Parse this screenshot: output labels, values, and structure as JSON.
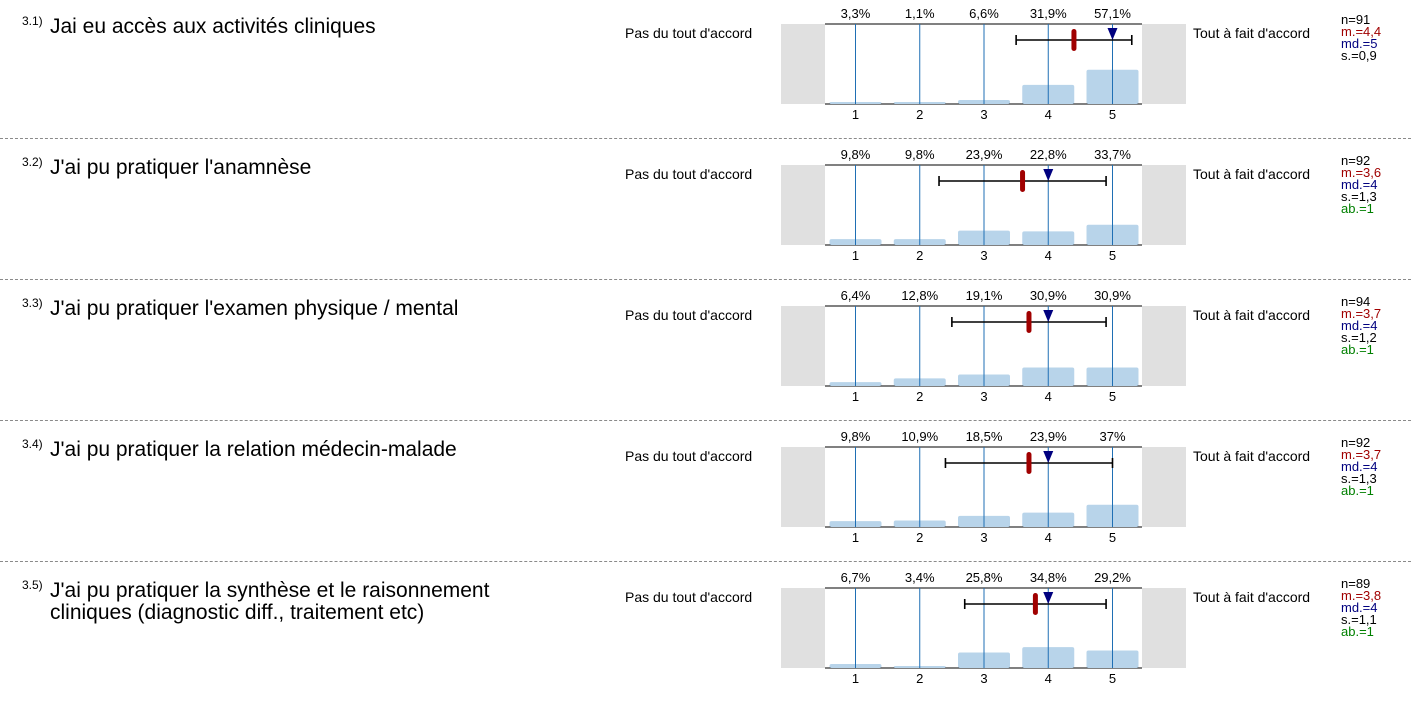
{
  "scale": {
    "min": 1,
    "max": 5,
    "ticks": [
      "1",
      "2",
      "3",
      "4",
      "5"
    ]
  },
  "colors": {
    "bar": "#b8d4ea",
    "gridline": "#1f6fb4",
    "side_panel": "#e0e0e0",
    "mean": "#a00000",
    "median": "#00007f",
    "abs": "#008000"
  },
  "questions": [
    {
      "num": "3.1)",
      "text": "Jai eu accès aux activités cliniques",
      "left_label": "Pas du tout d'accord",
      "right_label": "Tout à fait d'accord",
      "percent_labels": [
        "3,3%",
        "1,1%",
        "6,6%",
        "31,9%",
        "57,1%"
      ],
      "percents": [
        3.3,
        1.1,
        6.6,
        31.9,
        57.1
      ],
      "mean": 4.4,
      "median": 5,
      "sd": 0.9,
      "stats": {
        "n": "n=91",
        "m": "m.=4,4",
        "md": "md.=5",
        "s": "s.=0,9"
      }
    },
    {
      "num": "3.2)",
      "text": "J'ai pu pratiquer l'anamnèse",
      "left_label": "Pas du tout d'accord",
      "right_label": "Tout à fait d'accord",
      "percent_labels": [
        "9,8%",
        "9,8%",
        "23,9%",
        "22,8%",
        "33,7%"
      ],
      "percents": [
        9.8,
        9.8,
        23.9,
        22.8,
        33.7
      ],
      "mean": 3.6,
      "median": 4,
      "sd": 1.3,
      "stats": {
        "n": "n=92",
        "m": "m.=3,6",
        "md": "md.=4",
        "s": "s.=1,3",
        "ab": "ab.=1"
      }
    },
    {
      "num": "3.3)",
      "text": "J'ai pu pratiquer l'examen physique / mental",
      "left_label": "Pas du tout d'accord",
      "right_label": "Tout à fait d'accord",
      "percent_labels": [
        "6,4%",
        "12,8%",
        "19,1%",
        "30,9%",
        "30,9%"
      ],
      "percents": [
        6.4,
        12.8,
        19.1,
        30.9,
        30.9
      ],
      "mean": 3.7,
      "median": 4,
      "sd": 1.2,
      "stats": {
        "n": "n=94",
        "m": "m.=3,7",
        "md": "md.=4",
        "s": "s.=1,2",
        "ab": "ab.=1"
      }
    },
    {
      "num": "3.4)",
      "text": "J'ai pu pratiquer la relation médecin-malade",
      "left_label": "Pas du tout d'accord",
      "right_label": "Tout à fait d'accord",
      "percent_labels": [
        "9,8%",
        "10,9%",
        "18,5%",
        "23,9%",
        "37%"
      ],
      "percents": [
        9.8,
        10.9,
        18.5,
        23.9,
        37
      ],
      "mean": 3.7,
      "median": 4,
      "sd": 1.3,
      "stats": {
        "n": "n=92",
        "m": "m.=3,7",
        "md": "md.=4",
        "s": "s.=1,3",
        "ab": "ab.=1"
      }
    },
    {
      "num": "3.5)",
      "text": "J'ai pu pratiquer la synthèse et le raisonnement cliniques (diagnostic diff., traitement etc)",
      "left_label": "Pas du tout d'accord",
      "right_label": "Tout à fait d'accord",
      "percent_labels": [
        "6,7%",
        "3,4%",
        "25,8%",
        "34,8%",
        "29,2%"
      ],
      "percents": [
        6.7,
        3.4,
        25.8,
        34.8,
        29.2
      ],
      "mean": 3.8,
      "median": 4,
      "sd": 1.1,
      "stats": {
        "n": "n=89",
        "m": "m.=3,8",
        "md": "md.=4",
        "s": "s.=1,1",
        "ab": "ab.=1"
      }
    }
  ],
  "chart_data": {
    "type": "bar",
    "categories": [
      "1",
      "2",
      "3",
      "4",
      "5"
    ],
    "series": [
      {
        "name": "Jai eu accès aux activités cliniques",
        "values": [
          3.3,
          1.1,
          6.6,
          31.9,
          57.1
        ]
      },
      {
        "name": "J'ai pu pratiquer l'anamnèse",
        "values": [
          9.8,
          9.8,
          23.9,
          22.8,
          33.7
        ]
      },
      {
        "name": "J'ai pu pratiquer l'examen physique / mental",
        "values": [
          6.4,
          12.8,
          19.1,
          30.9,
          30.9
        ]
      },
      {
        "name": "J'ai pu pratiquer la relation médecin-malade",
        "values": [
          9.8,
          10.9,
          18.5,
          23.9,
          37
        ]
      },
      {
        "name": "J'ai pu pratiquer la synthèse et le raisonnement cliniques (diagnostic diff., traitement etc)",
        "values": [
          6.7,
          3.4,
          25.8,
          34.8,
          29.2
        ]
      }
    ],
    "means": [
      4.4,
      3.6,
      3.7,
      3.7,
      3.8
    ],
    "medians": [
      5,
      4,
      4,
      4,
      4
    ],
    "sds": [
      0.9,
      1.3,
      1.2,
      1.3,
      1.1
    ],
    "xlabel": "",
    "ylabel": "",
    "ylim": [
      0,
      100
    ]
  }
}
